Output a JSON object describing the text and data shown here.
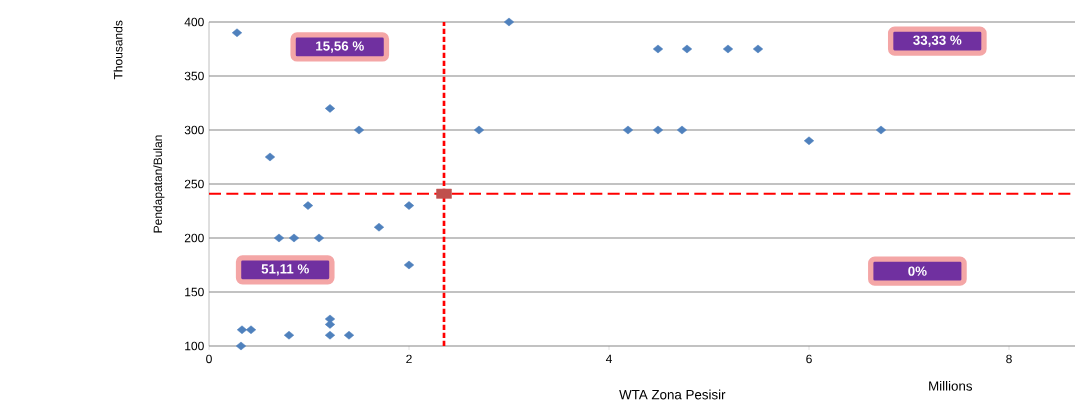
{
  "chart_data": {
    "type": "scatter",
    "xlabel": "WTA Zona Pesisir",
    "ylabel": "Pendapatan/Bulan",
    "annotations": [
      "15,56 %",
      "33,33 %",
      "51,11 %",
      "0%",
      "Thousands",
      "Millions"
    ],
    "series": [
      {
        "color": "#4f81bd",
        "x": [
          0.28,
          1.21,
          1.5,
          0.61,
          0.99,
          2.0,
          1.7,
          0.7,
          0.85,
          1.1,
          2.0,
          1.21,
          1.21,
          0.33,
          0.42,
          0.8,
          1.21,
          1.4,
          0.32,
          2.7,
          3.0,
          4.49,
          4.78,
          5.19,
          5.49,
          4.19,
          4.49,
          4.73,
          6.0,
          6.72
        ],
        "values": [
          390,
          320,
          300,
          275,
          230,
          230,
          210,
          200,
          200,
          200,
          175,
          125,
          120,
          115,
          115,
          110,
          110,
          110,
          100,
          300,
          400,
          375,
          375,
          375,
          375,
          300,
          300,
          300,
          290,
          300
        ]
      },
      {
        "color": "#c0504d",
        "marker": "square",
        "x": [
          2.35
        ],
        "values": [
          241
        ]
      }
    ],
    "marker": "diamond",
    "ref_lines": [
      {
        "axis": "x",
        "value": 2.35,
        "color": "#ff0000",
        "line_style": "dashed"
      },
      {
        "axis": "y",
        "value": 241,
        "color": "#ff0000",
        "line_style": "dashed"
      }
    ],
    "xlim": [
      0,
      8.66
    ],
    "ylim": [
      100,
      400
    ],
    "xticks": [
      0,
      2,
      4,
      6,
      8
    ],
    "yticks": [
      100,
      150,
      200,
      250,
      300,
      350,
      400
    ],
    "grid": "y"
  }
}
